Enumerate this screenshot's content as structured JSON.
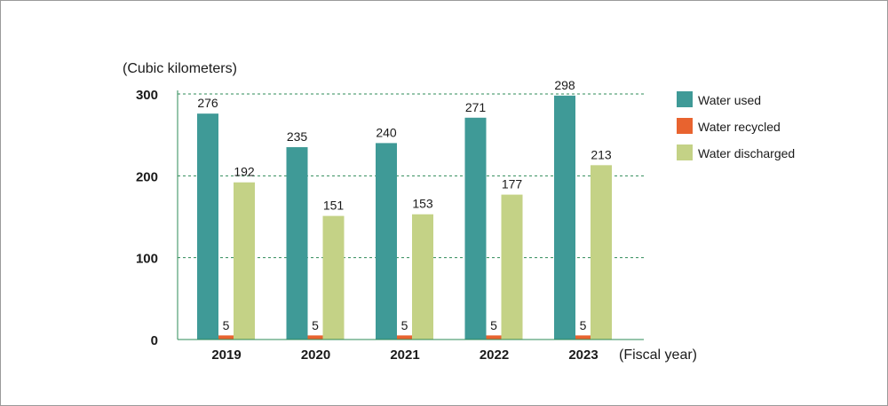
{
  "chart_data": {
    "type": "bar",
    "ylabel": "(Cubic kilometers)",
    "xlabel": "(Fiscal year)",
    "ylim": [
      0,
      300
    ],
    "yticks": [
      0,
      100,
      200,
      300
    ],
    "grid": true,
    "legend_position": "right",
    "categories": [
      "2019",
      "2020",
      "2021",
      "2022",
      "2023"
    ],
    "series": [
      {
        "name": "Water used",
        "color": "#3f9a97",
        "values": [
          276,
          235,
          240,
          271,
          298
        ]
      },
      {
        "name": "Water recycled",
        "color": "#e8632f",
        "values": [
          5,
          5,
          5,
          5,
          5
        ]
      },
      {
        "name": "Water discharged",
        "color": "#c4d286",
        "values": [
          192,
          151,
          153,
          177,
          213
        ]
      }
    ],
    "colors": {
      "grid": "#2e8b57",
      "axis": "#2e8b57"
    }
  }
}
